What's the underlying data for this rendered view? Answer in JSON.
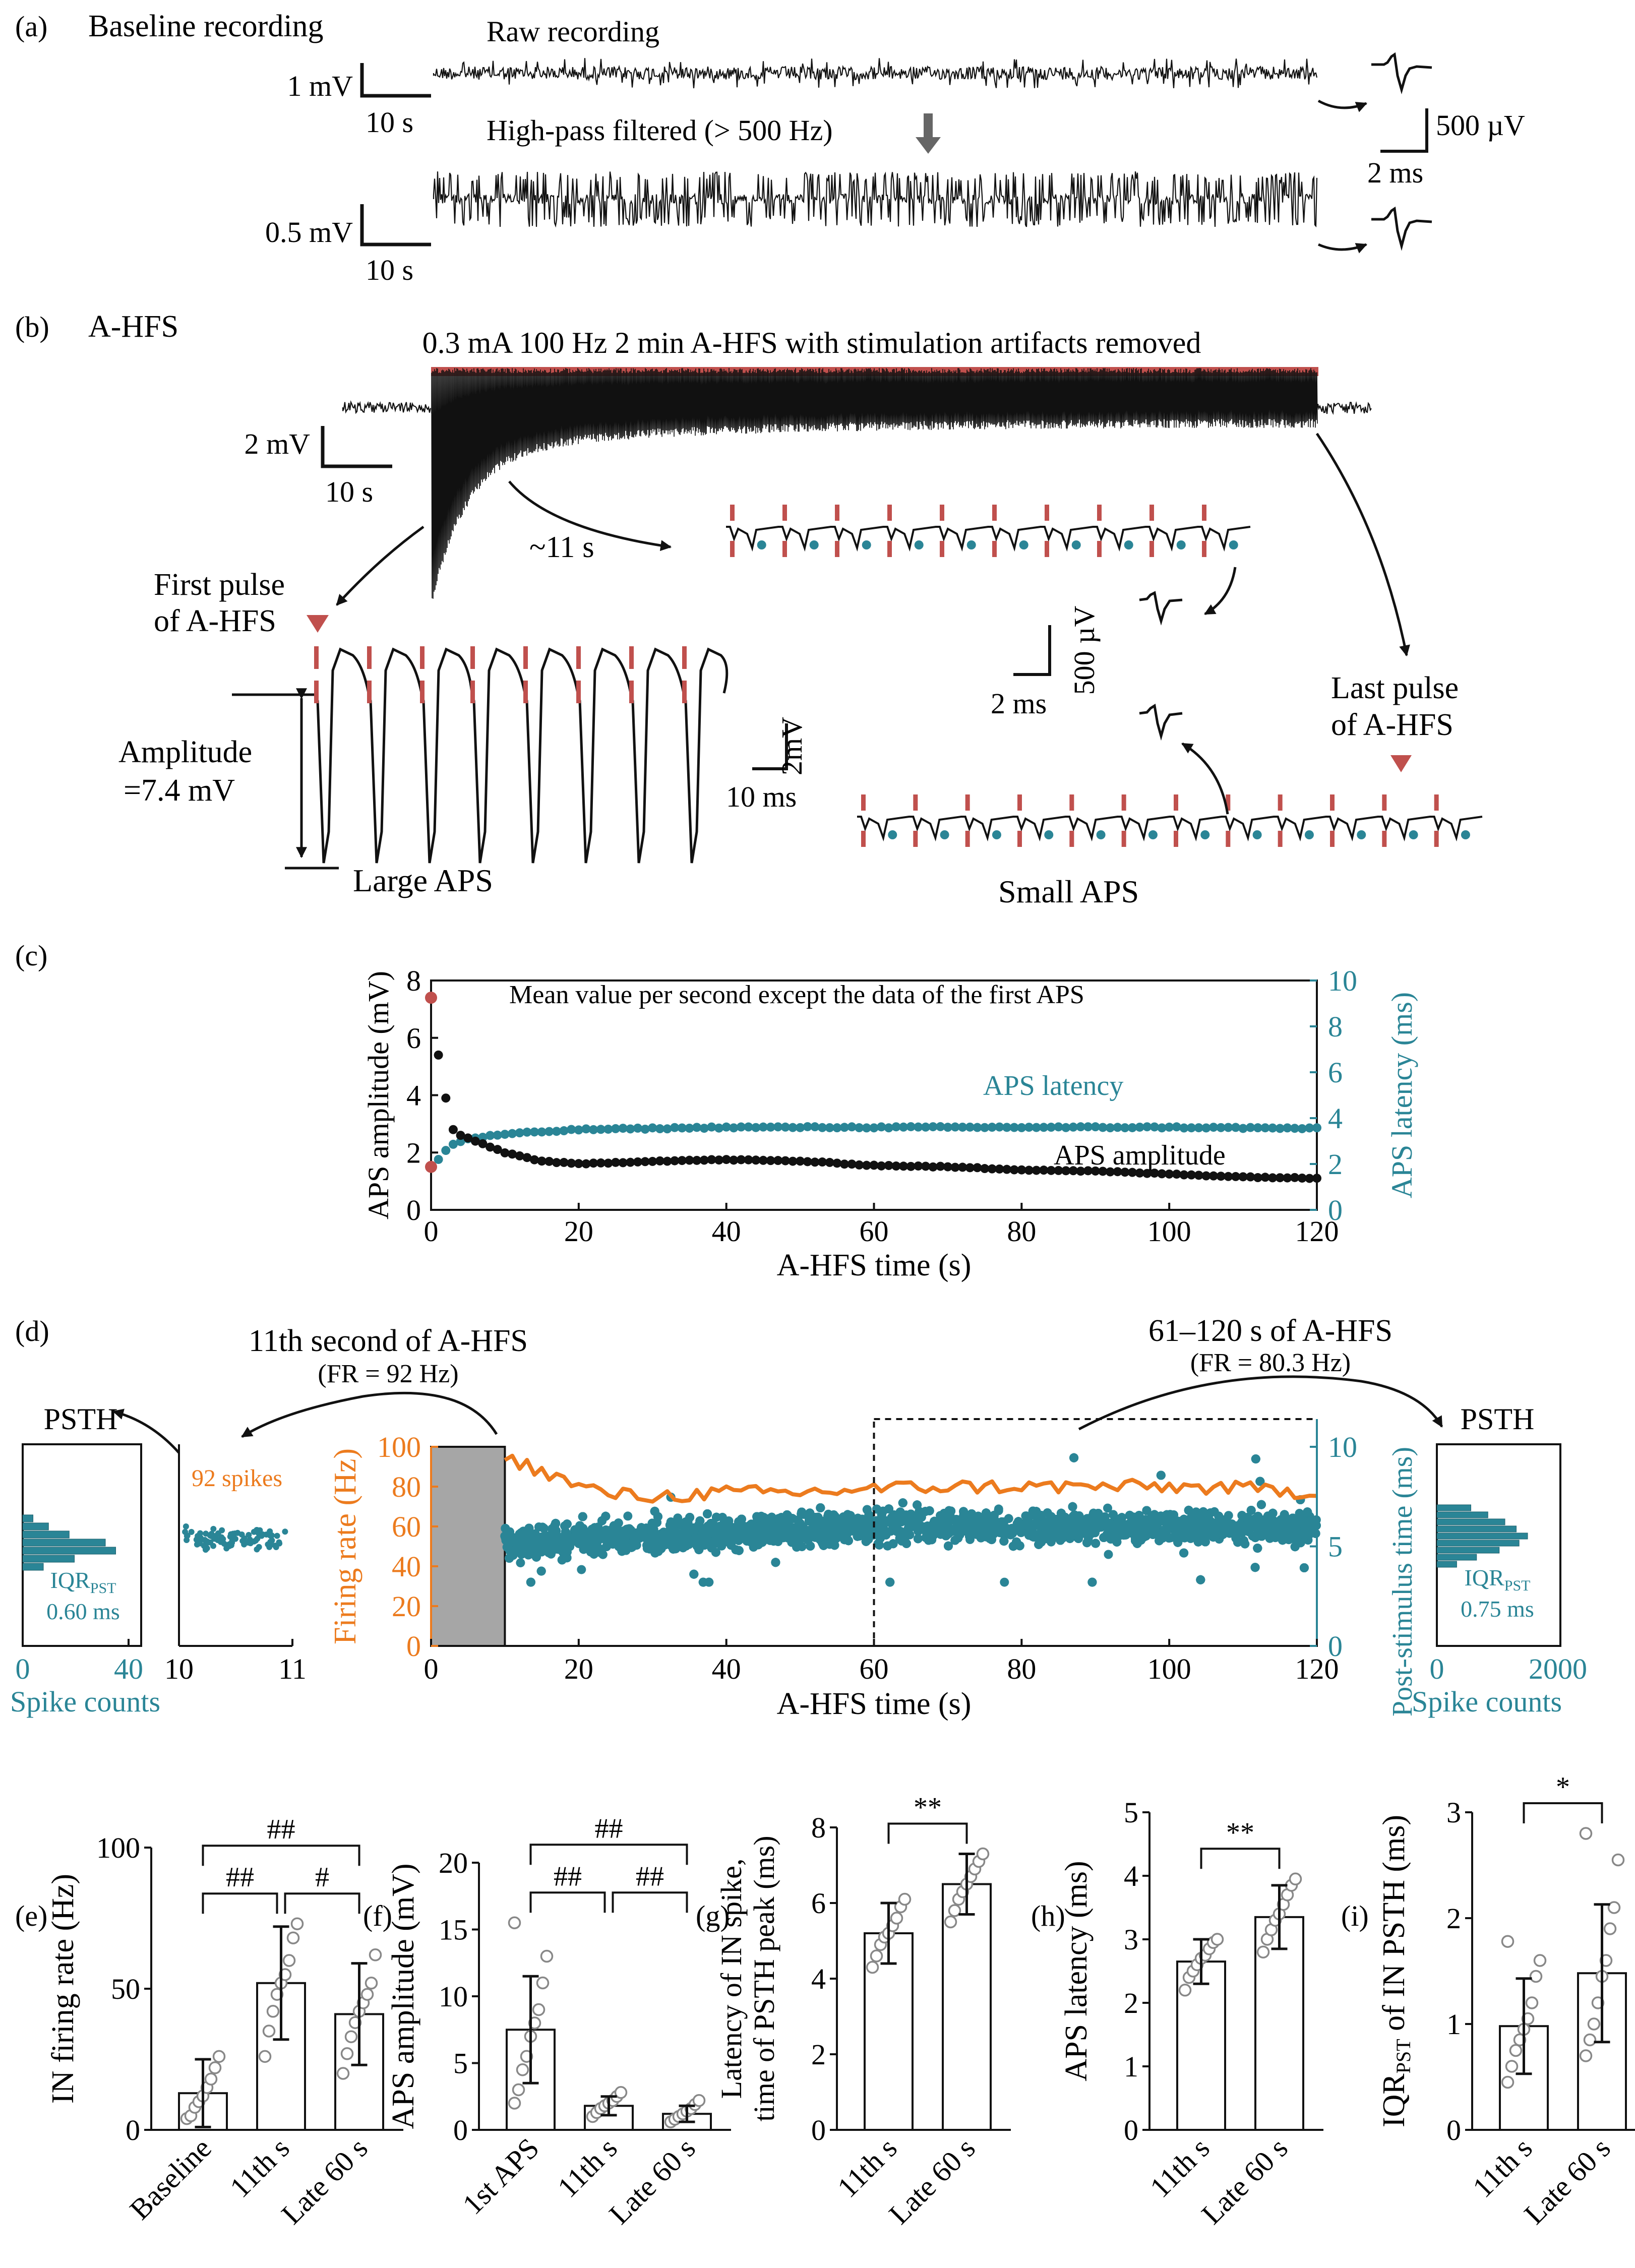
{
  "colors": {
    "black": "#111111",
    "red": "#c0504d",
    "teal": "#2a8596",
    "orange": "#ec7b1e",
    "gray_box": "#a6a6a6",
    "arrow_gray": "#666666"
  },
  "panel_a": {
    "label": "(a)",
    "title": "Baseline recording",
    "raw_label": "Raw recording",
    "filtered_label": "High-pass filtered (> 500 Hz)",
    "scale1_v": "1 mV",
    "scale1_t": "10 s",
    "scale2_v": "0.5 mV",
    "scale2_t": "10 s",
    "spike_scale_v": "500 µV",
    "spike_scale_t": "2 ms"
  },
  "panel_b": {
    "label": "(b)",
    "title": "A-HFS",
    "stim_label": "0.3 mA 100 Hz 2 min A-HFS with stimulation artifacts removed",
    "scale_v": "2 mV",
    "scale_t": "10 s",
    "time_annot": "~11 s",
    "first_pulse": [
      "First pulse",
      "of A-HFS"
    ],
    "last_pulse": [
      "Last pulse",
      "of A-HFS"
    ],
    "amplitude_label": [
      "Amplitude",
      "=7.4 mV"
    ],
    "large_aps": "Large APS",
    "small_aps": "Small APS",
    "zoom_scale_v": "2mV",
    "zoom_scale_t": "10 ms",
    "small_scale_v": "500 µV",
    "small_scale_t": "2 ms"
  },
  "panel_c": {
    "label": "(c)",
    "annotation": "Mean value per second except the data of the first APS",
    "latency_label": "APS latency",
    "amplitude_label": "APS amplitude"
  },
  "panel_d": {
    "label": "(d)",
    "left_title": "11th second of A-HFS",
    "left_fr": "(FR = 92 Hz)",
    "right_title": "61–120 s of A-HFS",
    "right_fr": "(FR = 80.3 Hz)",
    "psth_left": "PSTH",
    "psth_right": "PSTH",
    "spikes_label": "92 spikes",
    "iqr_left": "0.60 ms",
    "iqr_right": "0.75 ms",
    "iqr_main": "IQR",
    "iqr_sub": "PST",
    "spike_counts_left": "Spike counts",
    "spike_counts_right": "Spike counts",
    "left_hist_ticks": [
      "0",
      "40"
    ],
    "right_hist_ticks": [
      "0",
      "2000"
    ],
    "left_raster_ticks": [
      "10",
      "11"
    ]
  },
  "chart_data": [
    {
      "panel": "c",
      "type": "scatter",
      "xlabel": "A-HFS time (s)",
      "ylabel": "APS amplitude (mV)",
      "y2label": "APS latency (ms)",
      "xlim": [
        0,
        120
      ],
      "ylim": [
        0,
        8
      ],
      "y2lim": [
        0,
        10
      ],
      "xticks": [
        0,
        20,
        40,
        60,
        80,
        100,
        120
      ],
      "yticks": [
        0,
        2,
        4,
        6,
        8
      ],
      "y2ticks": [
        0,
        2,
        4,
        6,
        8,
        10
      ],
      "first_aps_points": [
        {
          "x": 0,
          "y": 7.4
        },
        {
          "x": 0,
          "y": 1.5
        }
      ],
      "amplitude_early": [
        {
          "x": 1,
          "y": 5.4
        },
        {
          "x": 2,
          "y": 3.9
        },
        {
          "x": 3,
          "y": 2.8
        },
        {
          "x": 4,
          "y": 2.6
        }
      ],
      "amplitude_anchors": [
        [
          5,
          2.5
        ],
        [
          10,
          2.0
        ],
        [
          15,
          1.7
        ],
        [
          20,
          1.6
        ],
        [
          30,
          1.7
        ],
        [
          40,
          1.75
        ],
        [
          50,
          1.7
        ],
        [
          60,
          1.55
        ],
        [
          70,
          1.5
        ],
        [
          80,
          1.4
        ],
        [
          90,
          1.35
        ],
        [
          100,
          1.25
        ],
        [
          110,
          1.15
        ],
        [
          120,
          1.1
        ]
      ],
      "latency_anchors": [
        [
          1,
          2.2
        ],
        [
          2,
          2.6
        ],
        [
          3,
          2.85
        ],
        [
          5,
          3.1
        ],
        [
          10,
          3.3
        ],
        [
          20,
          3.5
        ],
        [
          30,
          3.55
        ],
        [
          40,
          3.6
        ],
        [
          60,
          3.6
        ],
        [
          80,
          3.6
        ],
        [
          100,
          3.6
        ],
        [
          120,
          3.55
        ]
      ]
    },
    {
      "panel": "d",
      "type": "line",
      "xlabel": "A-HFS time (s)",
      "ylabel": "Firing rate (Hz)",
      "y2label": "Post-stimulus time (ms)",
      "xlim": [
        0,
        120
      ],
      "ylim": [
        0,
        100
      ],
      "y2lim": [
        0,
        10
      ],
      "xticks": [
        0,
        20,
        40,
        60,
        80,
        100,
        120
      ],
      "yticks": [
        0,
        20,
        40,
        60,
        80,
        100
      ],
      "y2ticks": [
        0,
        5,
        10
      ],
      "blanked_interval": [
        0,
        10
      ],
      "analysis_window": [
        60,
        120
      ],
      "firing_rate_anchors": [
        [
          10,
          95
        ],
        [
          12,
          92
        ],
        [
          15,
          88
        ],
        [
          20,
          80
        ],
        [
          25,
          76
        ],
        [
          30,
          75
        ],
        [
          40,
          77
        ],
        [
          50,
          77
        ],
        [
          60,
          79
        ],
        [
          70,
          80
        ],
        [
          80,
          80
        ],
        [
          90,
          80
        ],
        [
          100,
          80
        ],
        [
          110,
          79
        ],
        [
          120,
          77
        ]
      ],
      "pst_band_ms": [
        4.0,
        7.0
      ],
      "pst_center_early_ms": 5.2,
      "pst_center_late_ms": 6.0
    },
    {
      "panel": "e",
      "type": "bar",
      "label": "(e)",
      "ylabel": "IN firing rate (Hz)",
      "categories": [
        "Baseline",
        "11th s",
        "Late 60 s"
      ],
      "values": [
        13,
        52,
        41
      ],
      "sd": [
        12,
        20,
        18
      ],
      "ylim": [
        0,
        100
      ],
      "yticks": [
        0,
        50,
        100
      ],
      "points": [
        [
          4,
          5,
          8,
          10,
          12,
          15,
          18,
          22,
          26
        ],
        [
          26,
          35,
          42,
          48,
          52,
          55,
          60,
          68,
          73
        ],
        [
          20,
          27,
          33,
          38,
          42,
          45,
          48,
          52,
          62
        ]
      ],
      "sig": [
        {
          "from": 0,
          "to": 1,
          "label": "##"
        },
        {
          "from": 1,
          "to": 2,
          "label": "#"
        },
        {
          "from": 0,
          "to": 2,
          "label": "##"
        }
      ]
    },
    {
      "panel": "f",
      "type": "bar",
      "label": "(f)",
      "ylabel": "APS amplitude (mV)",
      "categories": [
        "1st APS",
        "11th s",
        "Late 60 s"
      ],
      "values": [
        7.5,
        1.8,
        1.2
      ],
      "sd": [
        4.0,
        0.7,
        0.6
      ],
      "ylim": [
        0,
        20
      ],
      "yticks": [
        0,
        5,
        10,
        15,
        20
      ],
      "points": [
        [
          2.0,
          3.0,
          4.5,
          5.5,
          7.0,
          8.0,
          9.0,
          11.0,
          13.0,
          15.5
        ],
        [
          1.0,
          1.3,
          1.6,
          1.8,
          2.0,
          2.2,
          2.5,
          2.8
        ],
        [
          0.6,
          0.8,
          1.0,
          1.2,
          1.4,
          1.6,
          1.9,
          2.2
        ]
      ],
      "sig": [
        {
          "from": 0,
          "to": 1,
          "label": "##"
        },
        {
          "from": 1,
          "to": 2,
          "label": "##"
        },
        {
          "from": 0,
          "to": 2,
          "label": "##"
        }
      ]
    },
    {
      "panel": "g",
      "type": "bar",
      "label": "(g)",
      "ylabel": [
        "Latency of IN spike,",
        "time of PSTH peak (ms)"
      ],
      "categories": [
        "11th s",
        "Late 60 s"
      ],
      "values": [
        5.2,
        6.5
      ],
      "sd": [
        0.8,
        0.8
      ],
      "ylim": [
        0,
        8
      ],
      "yticks": [
        0,
        2,
        4,
        6,
        8
      ],
      "points": [
        [
          4.3,
          4.6,
          4.9,
          5.1,
          5.2,
          5.4,
          5.6,
          5.9,
          6.1
        ],
        [
          5.5,
          5.8,
          6.1,
          6.3,
          6.5,
          6.7,
          6.9,
          7.1,
          7.3
        ]
      ],
      "sig": [
        {
          "from": 0,
          "to": 1,
          "label": "**"
        }
      ]
    },
    {
      "panel": "h",
      "type": "bar",
      "label": "(h)",
      "ylabel": "APS latency (ms)",
      "categories": [
        "11th s",
        "Late 60 s"
      ],
      "values": [
        2.65,
        3.35
      ],
      "sd": [
        0.35,
        0.5
      ],
      "ylim": [
        0,
        5
      ],
      "yticks": [
        0,
        1,
        2,
        3,
        4,
        5
      ],
      "points": [
        [
          2.2,
          2.4,
          2.5,
          2.6,
          2.7,
          2.75,
          2.85,
          2.95,
          3.0
        ],
        [
          2.8,
          3.0,
          3.15,
          3.3,
          3.4,
          3.55,
          3.7,
          3.85,
          3.95
        ]
      ],
      "sig": [
        {
          "from": 0,
          "to": 1,
          "label": "**"
        }
      ]
    },
    {
      "panel": "i",
      "type": "bar",
      "label": "(i)",
      "ylabel_main": "IQR",
      "ylabel_sub": "PST",
      "ylabel_rest": " of IN PSTH (ms)",
      "categories": [
        "11th s",
        "Late 60 s"
      ],
      "values": [
        0.98,
        1.48
      ],
      "sd": [
        0.45,
        0.65
      ],
      "ylim": [
        0,
        3
      ],
      "yticks": [
        0,
        1,
        2,
        3
      ],
      "points": [
        [
          0.45,
          0.6,
          0.75,
          0.85,
          0.95,
          1.05,
          1.2,
          1.45,
          1.6,
          1.78
        ],
        [
          0.7,
          0.85,
          1.0,
          1.2,
          1.45,
          1.6,
          1.9,
          2.1,
          2.55,
          2.8
        ]
      ],
      "sig": [
        {
          "from": 0,
          "to": 1,
          "label": "*"
        }
      ]
    }
  ]
}
